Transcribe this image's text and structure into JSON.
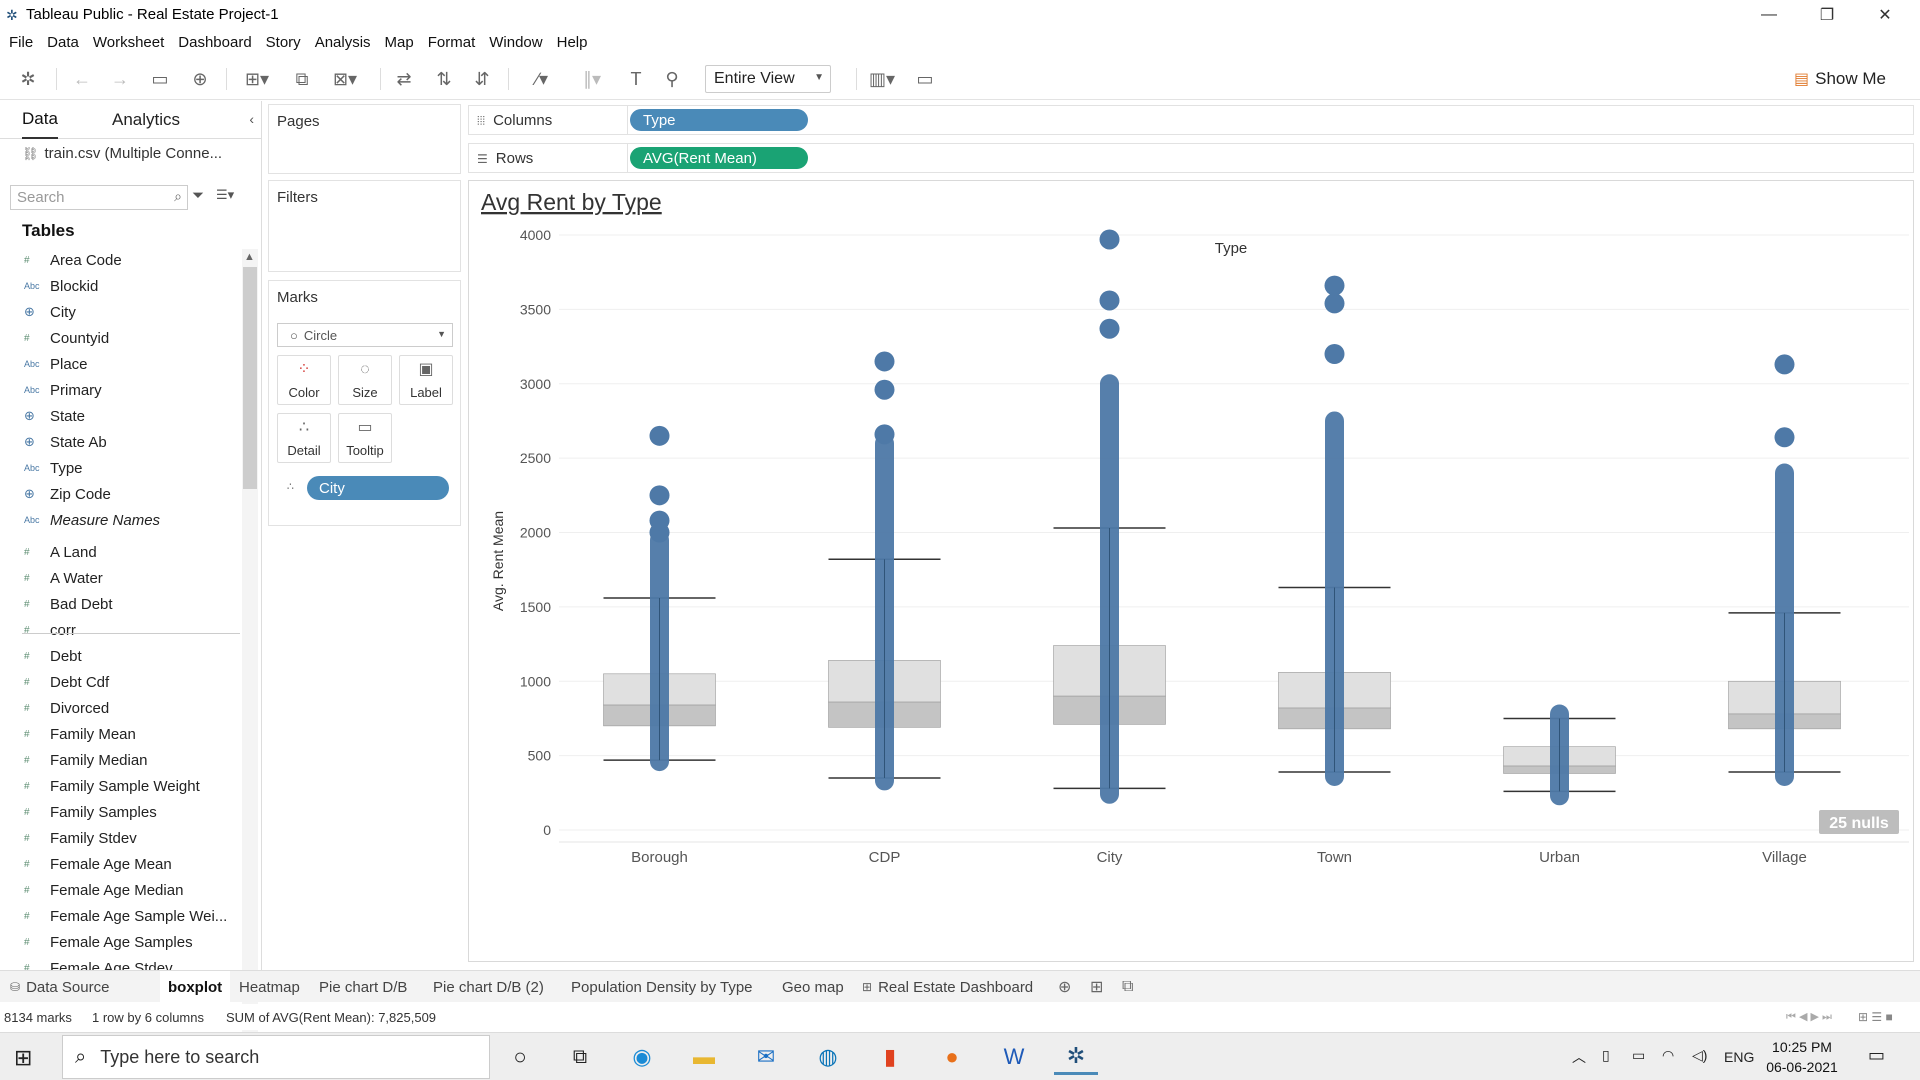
{
  "window": {
    "title": "Tableau Public - Real Estate Project-1",
    "controls": [
      "—",
      "❐",
      "✕"
    ]
  },
  "menu": [
    "File",
    "Data",
    "Worksheet",
    "Dashboard",
    "Story",
    "Analysis",
    "Map",
    "Format",
    "Window",
    "Help"
  ],
  "toolbar": {
    "fit_value": "Entire View",
    "show_me": "Show Me"
  },
  "data_pane": {
    "tab_data": "Data",
    "tab_analytics": "Analytics",
    "connection": "train.csv (Multiple Conne...",
    "search_placeholder": "Search",
    "tables_header": "Tables",
    "fields": [
      {
        "type": "#",
        "name": "Area Code"
      },
      {
        "type": "Abc",
        "name": "Blockid"
      },
      {
        "type": "geo",
        "name": "City"
      },
      {
        "type": "#",
        "name": "Countyid"
      },
      {
        "type": "Abc",
        "name": "Place"
      },
      {
        "type": "Abc",
        "name": "Primary"
      },
      {
        "type": "geo",
        "name": "State"
      },
      {
        "type": "geo",
        "name": "State Ab"
      },
      {
        "type": "Abc",
        "name": "Type"
      },
      {
        "type": "geo",
        "name": "Zip Code"
      },
      {
        "type": "Abc",
        "name": "Measure Names",
        "italic": true
      },
      {
        "type": "#",
        "name": "A Land"
      },
      {
        "type": "#",
        "name": "A Water"
      },
      {
        "type": "#",
        "name": "Bad Debt"
      },
      {
        "type": "#",
        "name": "corr"
      },
      {
        "type": "#",
        "name": "Debt"
      },
      {
        "type": "#",
        "name": "Debt Cdf"
      },
      {
        "type": "#",
        "name": "Divorced"
      },
      {
        "type": "#",
        "name": "Family Mean"
      },
      {
        "type": "#",
        "name": "Family Median"
      },
      {
        "type": "#",
        "name": "Family Sample Weight"
      },
      {
        "type": "#",
        "name": "Family Samples"
      },
      {
        "type": "#",
        "name": "Family Stdev"
      },
      {
        "type": "#",
        "name": "Female Age Mean"
      },
      {
        "type": "#",
        "name": "Female Age Median"
      },
      {
        "type": "#",
        "name": "Female Age Sample Wei..."
      },
      {
        "type": "#",
        "name": "Female Age Samples"
      },
      {
        "type": "#",
        "name": "Female Age Stdev"
      }
    ]
  },
  "shelves": {
    "pages": "Pages",
    "filters": "Filters",
    "marks": "Marks",
    "mark_type": "Circle",
    "mark_buttons": [
      "Color",
      "Size",
      "Label",
      "Detail",
      "Tooltip"
    ],
    "detail_pill": "City",
    "columns_label": "Columns",
    "rows_label": "Rows",
    "columns_pill": "Type",
    "rows_pill": "AVG(Rent Mean)"
  },
  "chart_data": {
    "type": "boxplot",
    "title": "Avg Rent by Type",
    "header": "Type",
    "ylabel": "Avg. Rent Mean",
    "ylim": [
      0,
      4000
    ],
    "yticks": [
      0,
      500,
      1000,
      1500,
      2000,
      2500,
      3000,
      3500,
      4000
    ],
    "categories": [
      "Borough",
      "CDP",
      "City",
      "Town",
      "Urban",
      "Village"
    ],
    "boxes": [
      {
        "category": "Borough",
        "min": 470,
        "q1": 700,
        "median": 840,
        "q3": 1050,
        "max": 1560,
        "data_min": 460,
        "data_max": 1950,
        "outliers": [
          2000,
          2080,
          2250,
          2650
        ]
      },
      {
        "category": "CDP",
        "min": 350,
        "q1": 690,
        "median": 860,
        "q3": 1140,
        "max": 1820,
        "data_min": 330,
        "data_max": 2600,
        "outliers": [
          2660,
          2960,
          3150
        ]
      },
      {
        "category": "City",
        "min": 280,
        "q1": 710,
        "median": 900,
        "q3": 1240,
        "max": 2030,
        "data_min": 240,
        "data_max": 3000,
        "outliers": [
          3370,
          3560,
          3970
        ]
      },
      {
        "category": "Town",
        "min": 390,
        "q1": 680,
        "median": 820,
        "q3": 1060,
        "max": 1630,
        "data_min": 360,
        "data_max": 2750,
        "outliers": [
          3200,
          3540,
          3660
        ]
      },
      {
        "category": "Urban",
        "min": 260,
        "q1": 380,
        "median": 430,
        "q3": 560,
        "max": 750,
        "data_min": 230,
        "data_max": 780,
        "outliers": []
      },
      {
        "category": "Village",
        "min": 390,
        "q1": 680,
        "median": 780,
        "q3": 1000,
        "max": 1460,
        "data_min": 360,
        "data_max": 2400,
        "outliers": [
          2640,
          3130
        ]
      }
    ],
    "nulls_label": "25 nulls",
    "colors": {
      "mark": "#4e79a7",
      "box_upper": "#e0e0e0",
      "box_lower": "#c4c4c4",
      "whisker": "#333333"
    }
  },
  "sheet_tabs": [
    "Data Source",
    "boxplot",
    "Heatmap",
    "Pie chart D/B",
    "Pie chart D/B (2)",
    "Population Density by Type",
    "Geo map",
    "Real Estate Dashboard"
  ],
  "status": {
    "marks": "8134 marks",
    "dims": "1 row by 6 columns",
    "sum": "SUM of AVG(Rent Mean): 7,825,509"
  },
  "taskbar": {
    "search_placeholder": "Type here to search",
    "lang": "ENG",
    "time": "10:25 PM",
    "date": "06-06-2021"
  }
}
